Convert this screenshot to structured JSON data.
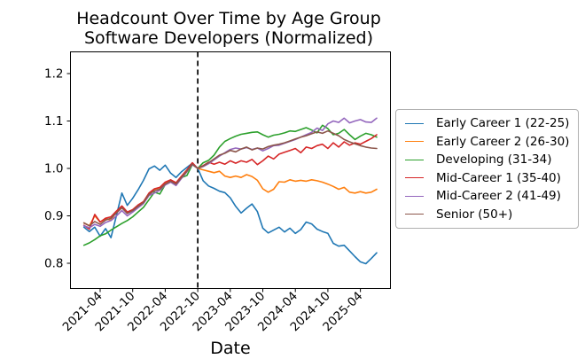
{
  "chart_data": {
    "type": "line",
    "title": "Headcount Over Time by Age Group",
    "subtitle": "Software Developers (Normalized)",
    "xlabel": "Date",
    "ylabel": "",
    "grid": false,
    "ylim": [
      0.75,
      1.24
    ],
    "yticks": [
      0.8,
      0.9,
      1.0,
      1.1,
      1.2
    ],
    "xticks": [
      "2021-04",
      "2021-10",
      "2022-04",
      "2022-10",
      "2023-04",
      "2023-10",
      "2024-04",
      "2024-10",
      "2025-04"
    ],
    "vline": {
      "x": "2022-10",
      "style": "dashed",
      "color": "#000000"
    },
    "legend_position": "center right",
    "x": [
      "2021-01",
      "2021-02",
      "2021-03",
      "2021-04",
      "2021-05",
      "2021-06",
      "2021-07",
      "2021-08",
      "2021-09",
      "2021-10",
      "2021-11",
      "2021-12",
      "2022-01",
      "2022-02",
      "2022-03",
      "2022-04",
      "2022-05",
      "2022-06",
      "2022-07",
      "2022-08",
      "2022-09",
      "2022-10",
      "2022-11",
      "2022-12",
      "2023-01",
      "2023-02",
      "2023-03",
      "2023-04",
      "2023-05",
      "2023-06",
      "2023-07",
      "2023-08",
      "2023-09",
      "2023-10",
      "2023-11",
      "2023-12",
      "2024-01",
      "2024-02",
      "2024-03",
      "2024-04",
      "2024-05",
      "2024-06",
      "2024-07",
      "2024-08",
      "2024-09",
      "2024-10",
      "2024-11",
      "2024-12",
      "2025-01",
      "2025-02",
      "2025-03",
      "2025-04",
      "2025-05",
      "2025-06",
      "2025-07"
    ],
    "series": [
      {
        "name": "Early Career 1 (22-25)",
        "color": "#1f77b4",
        "values": [
          0.876,
          0.867,
          0.876,
          0.857,
          0.873,
          0.854,
          0.901,
          0.948,
          0.922,
          0.937,
          0.955,
          0.975,
          0.999,
          1.005,
          0.996,
          1.007,
          0.99,
          0.981,
          0.993,
          1.002,
          1.011,
          1.0,
          0.974,
          0.963,
          0.958,
          0.952,
          0.949,
          0.938,
          0.92,
          0.906,
          0.916,
          0.925,
          0.909,
          0.874,
          0.864,
          0.87,
          0.876,
          0.866,
          0.874,
          0.863,
          0.871,
          0.887,
          0.883,
          0.872,
          0.867,
          0.863,
          0.842,
          0.836,
          0.838,
          0.826,
          0.814,
          0.803,
          0.799,
          0.81,
          0.822
        ]
      },
      {
        "name": "Early Career 2 (26-30)",
        "color": "#ff7f0e",
        "values": [
          0.885,
          0.879,
          0.9,
          0.887,
          0.894,
          0.891,
          0.909,
          0.919,
          0.906,
          0.912,
          0.921,
          0.929,
          0.947,
          0.956,
          0.959,
          0.97,
          0.975,
          0.969,
          0.983,
          0.996,
          1.01,
          1.0,
          0.997,
          0.994,
          0.991,
          0.994,
          0.984,
          0.981,
          0.984,
          0.981,
          0.987,
          0.983,
          0.975,
          0.957,
          0.95,
          0.956,
          0.972,
          0.971,
          0.976,
          0.973,
          0.975,
          0.973,
          0.976,
          0.974,
          0.971,
          0.967,
          0.962,
          0.956,
          0.96,
          0.95,
          0.948,
          0.951,
          0.948,
          0.95,
          0.956
        ]
      },
      {
        "name": "Developing (31-34)",
        "color": "#2ca02c",
        "values": [
          0.838,
          0.843,
          0.85,
          0.858,
          0.862,
          0.87,
          0.877,
          0.884,
          0.89,
          0.898,
          0.908,
          0.918,
          0.934,
          0.95,
          0.946,
          0.966,
          0.972,
          0.968,
          0.981,
          0.985,
          1.008,
          1.0,
          1.012,
          1.017,
          1.028,
          1.045,
          1.057,
          1.063,
          1.068,
          1.072,
          1.074,
          1.076,
          1.077,
          1.071,
          1.066,
          1.07,
          1.072,
          1.075,
          1.079,
          1.078,
          1.082,
          1.086,
          1.081,
          1.075,
          1.091,
          1.084,
          1.071,
          1.074,
          1.082,
          1.071,
          1.061,
          1.068,
          1.074,
          1.071,
          1.066
        ]
      },
      {
        "name": "Mid-Career 1 (35-40)",
        "color": "#d62728",
        "values": [
          0.88,
          0.872,
          0.903,
          0.887,
          0.895,
          0.898,
          0.91,
          0.921,
          0.908,
          0.913,
          0.923,
          0.93,
          0.948,
          0.957,
          0.96,
          0.971,
          0.976,
          0.97,
          0.984,
          0.997,
          1.012,
          1.0,
          1.006,
          1.013,
          1.009,
          1.013,
          1.009,
          1.016,
          1.011,
          1.016,
          1.013,
          1.019,
          1.008,
          1.016,
          1.026,
          1.02,
          1.03,
          1.034,
          1.038,
          1.042,
          1.033,
          1.045,
          1.042,
          1.048,
          1.051,
          1.042,
          1.054,
          1.045,
          1.056,
          1.049,
          1.054,
          1.051,
          1.057,
          1.063,
          1.071
        ]
      },
      {
        "name": "Mid-Career 2 (41-49)",
        "color": "#9467bd",
        "values": [
          0.879,
          0.875,
          0.882,
          0.878,
          0.886,
          0.89,
          0.9,
          0.911,
          0.9,
          0.908,
          0.917,
          0.926,
          0.943,
          0.948,
          0.954,
          0.965,
          0.971,
          0.964,
          0.979,
          0.993,
          1.008,
          1.0,
          1.004,
          1.01,
          1.018,
          1.026,
          1.033,
          1.04,
          1.043,
          1.041,
          1.044,
          1.04,
          1.043,
          1.037,
          1.042,
          1.048,
          1.049,
          1.053,
          1.057,
          1.061,
          1.066,
          1.071,
          1.076,
          1.085,
          1.08,
          1.094,
          1.1,
          1.097,
          1.106,
          1.096,
          1.1,
          1.103,
          1.098,
          1.097,
          1.106
        ]
      },
      {
        "name": "Senior (50+)",
        "color": "#8c564b",
        "values": [
          0.885,
          0.879,
          0.888,
          0.882,
          0.891,
          0.895,
          0.906,
          0.917,
          0.905,
          0.911,
          0.92,
          0.928,
          0.945,
          0.953,
          0.956,
          0.967,
          0.973,
          0.967,
          0.981,
          0.994,
          1.009,
          1.0,
          1.005,
          1.012,
          1.02,
          1.028,
          1.032,
          1.038,
          1.035,
          1.041,
          1.045,
          1.039,
          1.043,
          1.041,
          1.046,
          1.049,
          1.051,
          1.054,
          1.058,
          1.062,
          1.066,
          1.069,
          1.073,
          1.077,
          1.074,
          1.079,
          1.074,
          1.069,
          1.061,
          1.056,
          1.052,
          1.048,
          1.045,
          1.043,
          1.042
        ]
      }
    ]
  }
}
